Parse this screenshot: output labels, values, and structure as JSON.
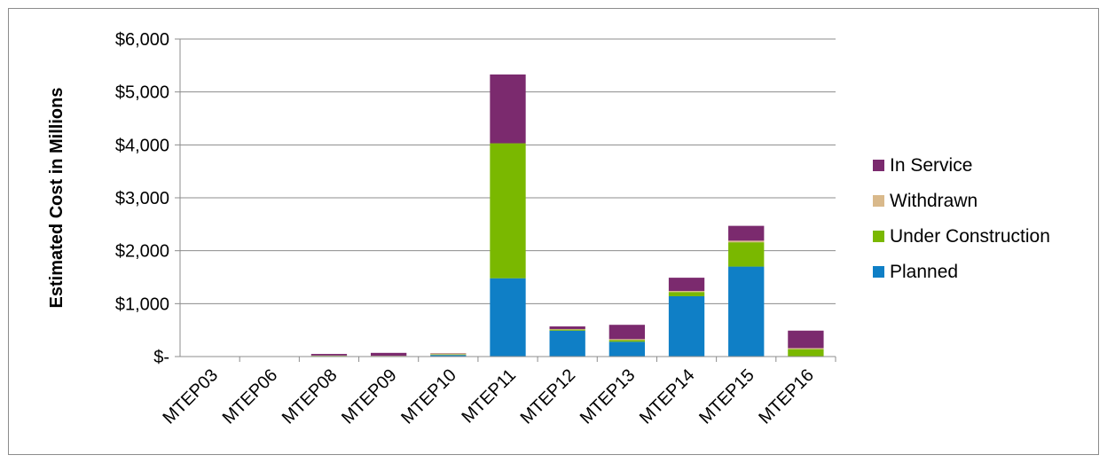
{
  "chart_data": {
    "type": "bar",
    "stacked": true,
    "title": "",
    "xlabel": "",
    "ylabel": "Estimated Cost in Millions",
    "ylim": [
      0,
      6000
    ],
    "yticks": [
      0,
      1000,
      2000,
      3000,
      4000,
      5000,
      6000
    ],
    "ytick_labels": [
      "$-",
      "$1,000",
      "$2,000",
      "$3,000",
      "$4,000",
      "$5,000",
      "$6,000"
    ],
    "grid": true,
    "legend_position": "right",
    "categories": [
      "MTEP03",
      "MTEP06",
      "MTEP08",
      "MTEP09",
      "MTEP10",
      "MTEP11",
      "MTEP12",
      "MTEP13",
      "MTEP14",
      "MTEP15",
      "MTEP16"
    ],
    "series": [
      {
        "name": "Planned",
        "color": "#0f7fc6",
        "values": [
          0,
          0,
          10,
          5,
          30,
          1480,
          490,
          280,
          1140,
          1700,
          0
        ]
      },
      {
        "name": "Under Construction",
        "color": "#7ab800",
        "values": [
          0,
          0,
          5,
          5,
          10,
          2550,
          20,
          30,
          80,
          460,
          140
        ]
      },
      {
        "name": "Withdrawn",
        "color": "#d9b98b",
        "values": [
          0,
          0,
          5,
          5,
          20,
          0,
          10,
          20,
          20,
          30,
          20
        ]
      },
      {
        "name": "In Service",
        "color": "#7b2a6e",
        "values": [
          0,
          0,
          30,
          55,
          5,
          1300,
          50,
          270,
          250,
          280,
          330
        ]
      }
    ]
  }
}
